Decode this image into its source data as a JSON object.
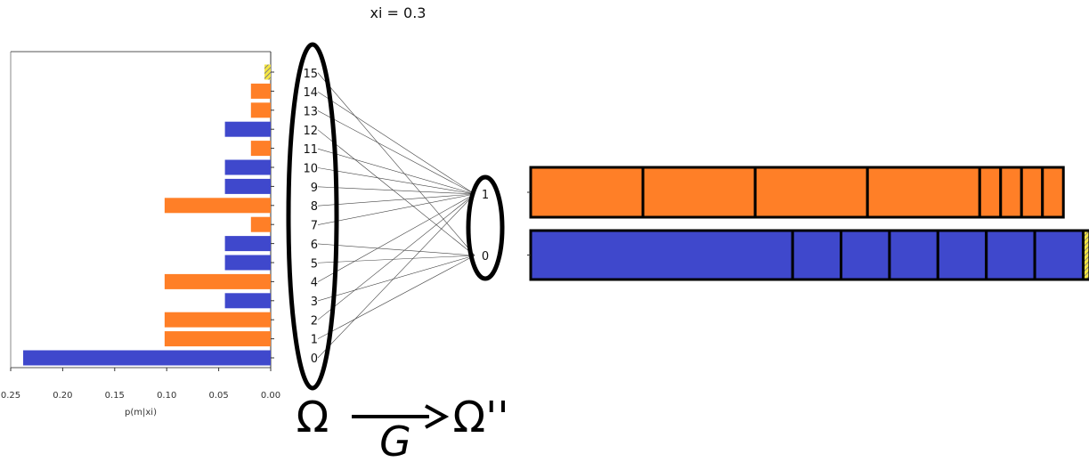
{
  "title": "xi = 0.3",
  "colors": {
    "orange": "#ff7f27",
    "blue": "#3f48cc",
    "dark": "#000000",
    "hatch": "#f5e642"
  },
  "omega_label": "Ω",
  "omega_double_label": "Ω''",
  "g_label": "G",
  "chart_data": {
    "type": "bar",
    "orientation": "horizontal",
    "xlabel": "p(m|xi)",
    "xlim": [
      0.25,
      0.0
    ],
    "xticks": [
      "0.25",
      "0.20",
      "0.15",
      "0.10",
      "0.05",
      "0.00"
    ],
    "categories": [
      "0",
      "1",
      "2",
      "3",
      "4",
      "5",
      "6",
      "7",
      "8",
      "9",
      "10",
      "11",
      "12",
      "13",
      "14",
      "15"
    ],
    "values": [
      0.238,
      0.102,
      0.102,
      0.044,
      0.102,
      0.044,
      0.044,
      0.019,
      0.102,
      0.044,
      0.044,
      0.019,
      0.044,
      0.019,
      0.019,
      0.006
    ],
    "bar_colors": [
      "blue",
      "orange",
      "orange",
      "blue",
      "orange",
      "blue",
      "blue",
      "orange",
      "orange",
      "blue",
      "blue",
      "orange",
      "blue",
      "orange",
      "orange",
      "hatched"
    ]
  },
  "mapping": {
    "omega_nodes": [
      "0",
      "1",
      "2",
      "3",
      "4",
      "5",
      "6",
      "7",
      "8",
      "9",
      "10",
      "11",
      "12",
      "13",
      "14",
      "15"
    ],
    "omega2_nodes": [
      "1",
      "0"
    ],
    "edges_to_1": [
      "0",
      "2",
      "4",
      "7",
      "8",
      "9",
      "10",
      "11",
      "13",
      "14"
    ],
    "edges_to_0": [
      "1",
      "3",
      "5",
      "6",
      "12",
      "15"
    ]
  },
  "stacked_bars": [
    {
      "label": "1",
      "color": "orange",
      "segments": [
        0.102,
        0.102,
        0.102,
        0.102,
        0.019,
        0.019,
        0.019,
        0.019
      ]
    },
    {
      "label": "0",
      "color": "blue",
      "segments": [
        0.238,
        0.044,
        0.044,
        0.044,
        0.044,
        0.044,
        0.044,
        0.006
      ]
    }
  ]
}
